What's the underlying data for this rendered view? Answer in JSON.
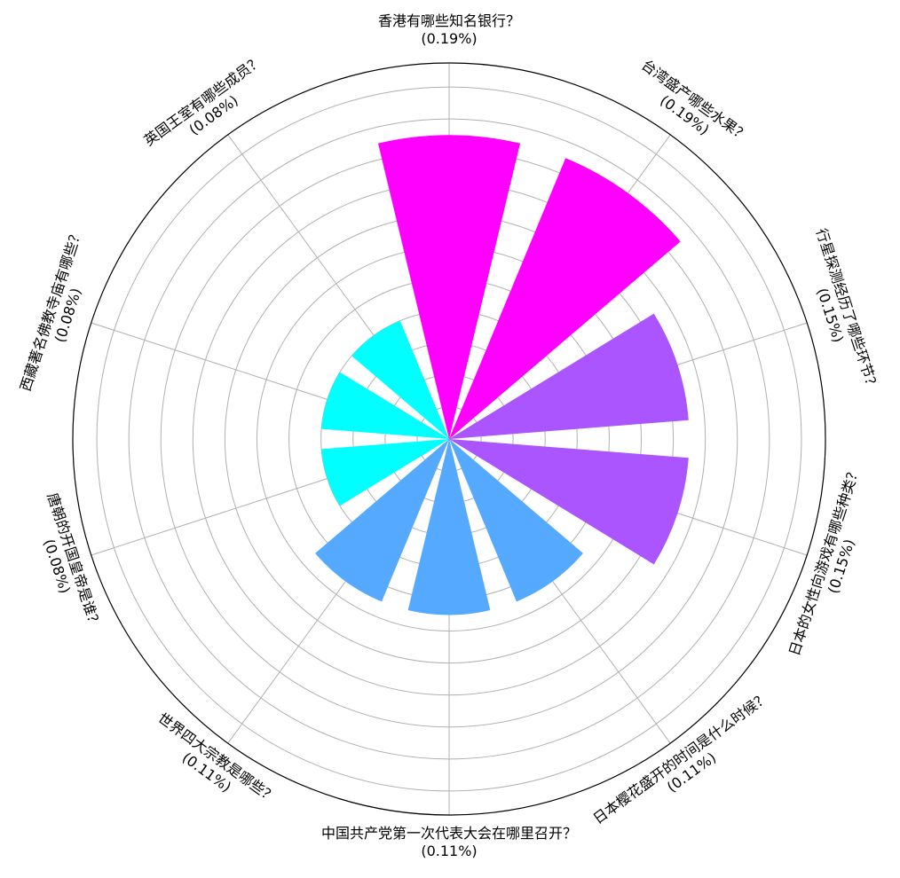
{
  "chart_data": {
    "type": "polar-bar",
    "title": "",
    "grid": true,
    "rmax": 0.235,
    "colors": {
      "top": "#ff00ff",
      "mid": "#aa55ff",
      "low": "#55aaff",
      "min": "#00ffff",
      "grid": "#b0b0b0",
      "outline": "#000000"
    },
    "categories": [
      "香港有哪些知名银行？",
      "台湾盛产哪些水果？",
      "行星探测经历了哪些环节？",
      "日本的女性向游戏有哪些种类？",
      "日本樱花盛开的时间是什么时候？",
      "中国共产党第一次代表大会在哪里召开？",
      "世界四大宗教是哪些？",
      "唐朝的开国皇帝是谁？",
      "西藏著名佛教寺庙有哪些？",
      "英国王室有哪些成员？"
    ],
    "percent_labels": [
      "(0.19%)",
      "(0.19%)",
      "(0.15%)",
      "(0.15%)",
      "(0.11%)",
      "(0.11%)",
      "(0.11%)",
      "(0.08%)",
      "(0.08%)",
      "(0.08%)"
    ],
    "values": [
      0.19,
      0.19,
      0.15,
      0.15,
      0.11,
      0.11,
      0.11,
      0.08,
      0.08,
      0.08
    ]
  }
}
